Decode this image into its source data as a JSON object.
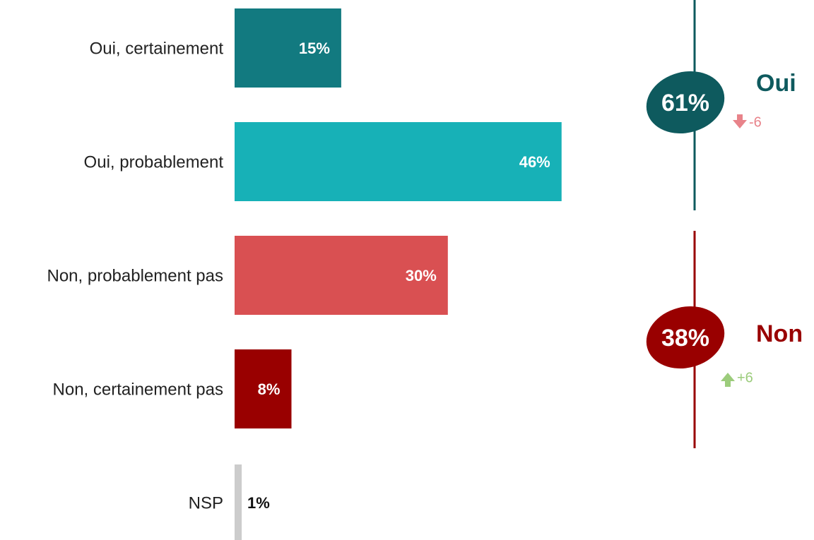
{
  "chart_data": {
    "type": "bar",
    "categories": [
      "Oui, certainement",
      "Oui, probablement",
      "Non, probablement pas",
      "Non, certainement pas",
      "NSP"
    ],
    "values": [
      15,
      46,
      30,
      8,
      1
    ],
    "value_labels": [
      "15%",
      "46%",
      "30%",
      "8%",
      "1%"
    ],
    "colors": [
      "#127a80",
      "#17b1b7",
      "#d95052",
      "#990000",
      "#cccccc"
    ],
    "summaries": [
      {
        "label": "Oui",
        "value": 61,
        "value_label": "61%",
        "color": "#0e5a5e",
        "change": -6,
        "change_color": "#e8838a"
      },
      {
        "label": "Non",
        "value": 38,
        "value_label": "38%",
        "color": "#990000",
        "change": 6,
        "change_label": "+6",
        "change_color": "#9ccc7c"
      }
    ]
  }
}
